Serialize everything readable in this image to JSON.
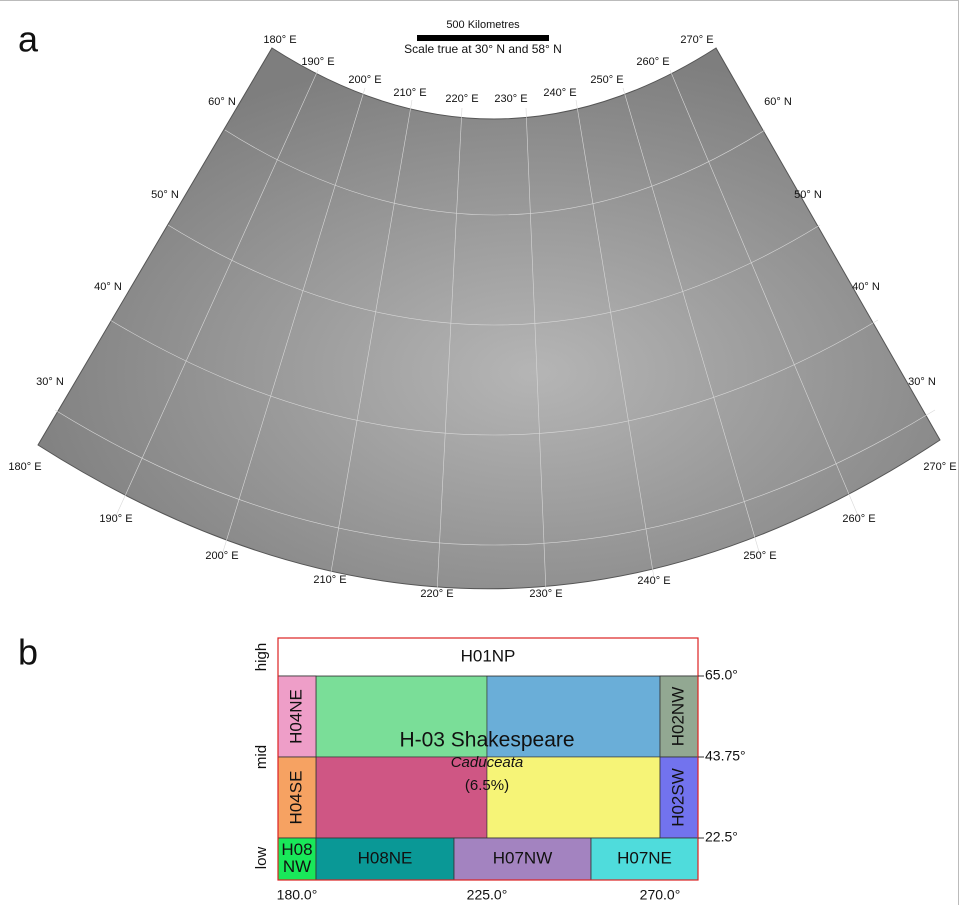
{
  "panel_a": {
    "label": "a",
    "scale_bar": "500 Kilometres",
    "scale_note": "Scale true at 30° N and 58° N",
    "top_longitudes": [
      "180° E",
      "190° E",
      "200° E",
      "210° E",
      "220° E",
      "230° E",
      "240° E",
      "250° E",
      "260° E",
      "270° E"
    ],
    "left_latitudes": [
      "60° N",
      "50° N",
      "40° N",
      "30° N"
    ],
    "right_latitudes": [
      "60° N",
      "50° N",
      "40° N",
      "30° N"
    ],
    "bottom_longitudes": [
      "180° E",
      "190° E",
      "200° E",
      "210° E",
      "220° E",
      "230° E",
      "240° E",
      "250° E",
      "260° E",
      "270° E"
    ]
  },
  "panel_b": {
    "label": "b",
    "axis_labels": [
      "high",
      "mid",
      "low"
    ],
    "latitude_ticks": [
      "65.0°",
      "43.75°",
      "22.5°"
    ],
    "longitude_ticks": [
      "180.0°",
      "225.0°",
      "270.0°"
    ],
    "tiles": [
      {
        "label": [
          "H01NP"
        ],
        "color": "#ffffff"
      },
      {
        "label": [
          "H04NE"
        ],
        "color": "#ee9ec8"
      },
      {
        "label": [
          "H02NW"
        ],
        "color": "#92a892"
      },
      {
        "label": [
          "H04SE"
        ],
        "color": "#f6a262"
      },
      {
        "label": [
          "H02SW"
        ],
        "color": "#7273ee"
      },
      {
        "label": [
          "H08",
          "NW"
        ],
        "color": "#19e85a"
      },
      {
        "label": [
          "H08NE"
        ],
        "color": "#0a9896"
      },
      {
        "label": [
          "H07NW"
        ],
        "color": "#a383c0"
      },
      {
        "label": [
          "H07NE"
        ],
        "color": "#4fdcdc"
      }
    ],
    "quadrant_colors": [
      "#7ade98",
      "#6aaed8",
      "#cf5684",
      "#f6f477"
    ],
    "center": {
      "title": "H-03 Shakespeare",
      "name": "Caduceata",
      "share": "(6.5%)"
    }
  }
}
